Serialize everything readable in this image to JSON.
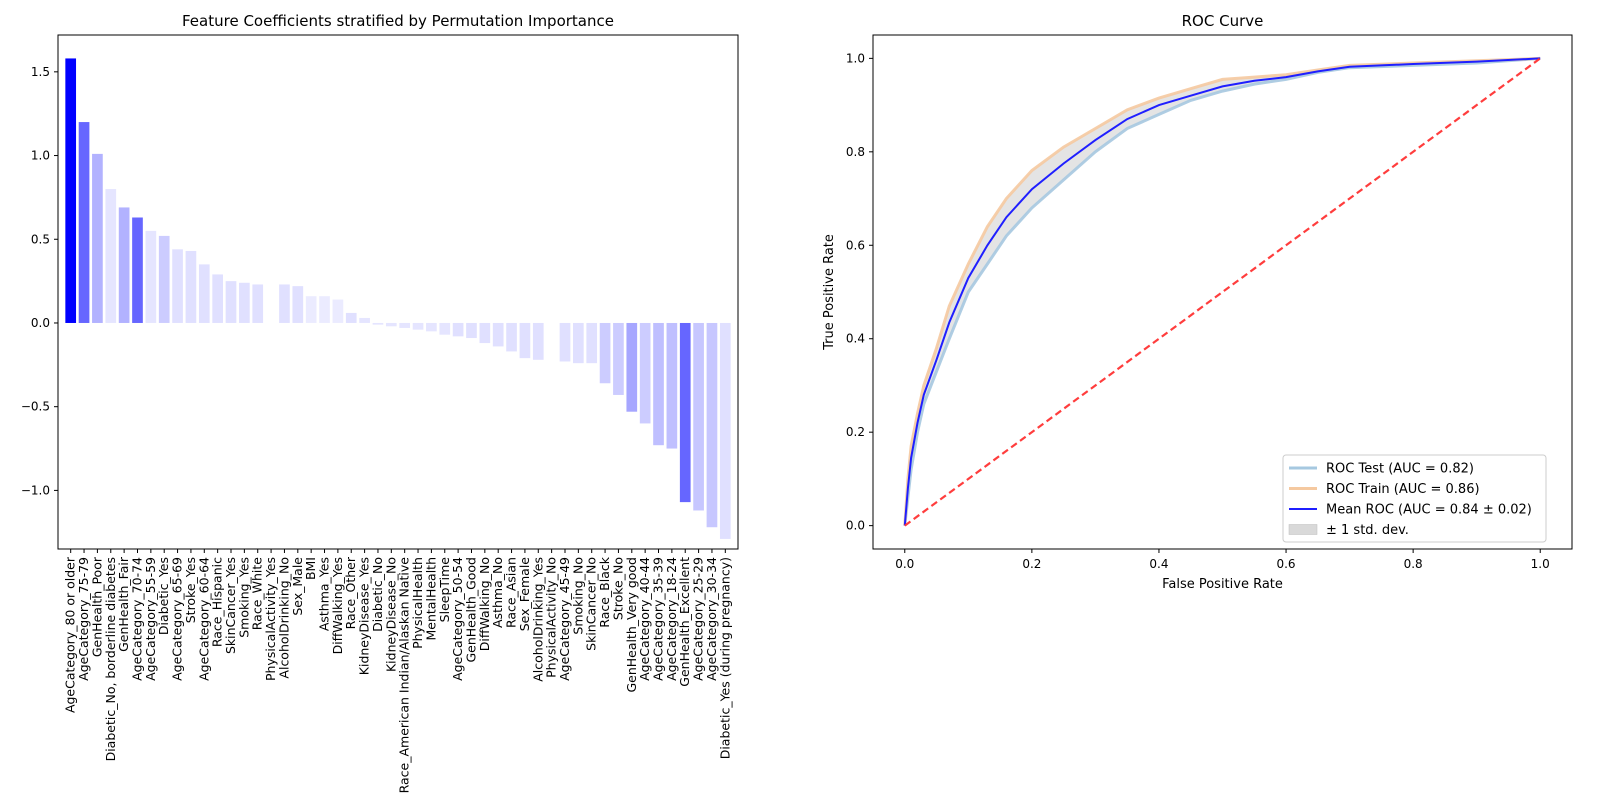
{
  "chart_data": [
    {
      "type": "bar",
      "title": "Feature Coefficients stratified by Permutation Importance",
      "xlabel": "",
      "ylabel": "",
      "ylim": [
        -1.35,
        1.72
      ],
      "yticks": [
        -1.0,
        -0.5,
        0.0,
        0.5,
        1.0,
        1.5
      ],
      "ytick_labels": [
        "−1.0",
        "−0.5",
        "0.0",
        "0.5",
        "1.0",
        "1.5"
      ],
      "bar_color": "#0000ff",
      "categories": [
        "AgeCategory_80 or older",
        "AgeCategory_75-79",
        "GenHealth_Poor",
        "Diabetic_No, borderline diabetes",
        "GenHealth_Fair",
        "AgeCategory_70-74",
        "AgeCategory_55-59",
        "Diabetic_Yes",
        "AgeCategory_65-69",
        "Stroke_Yes",
        "AgeCategory_60-64",
        "Race_Hispanic",
        "SkinCancer_Yes",
        "Smoking_Yes",
        "Race_White",
        "PhysicalActivity_Yes",
        "AlcoholDrinking_No",
        "Sex_Male",
        "BMI",
        "Asthma_Yes",
        "DiffWalking_Yes",
        "Race_Other",
        "KidneyDisease_Yes",
        "Diabetic_No",
        "KidneyDisease_No",
        "Race_American Indian/Alaskan Native",
        "PhysicalHealth",
        "MentalHealth",
        "SleepTime",
        "AgeCategory_50-54",
        "GenHealth_Good",
        "DiffWalking_No",
        "Asthma_No",
        "Race_Asian",
        "Sex_Female",
        "AlcoholDrinking_Yes",
        "PhysicalActivity_No",
        "AgeCategory_45-49",
        "Smoking_No",
        "SkinCancer_No",
        "Race_Black",
        "Stroke_No",
        "GenHealth_Very good",
        "AgeCategory_40-44",
        "AgeCategory_35-39",
        "AgeCategory_18-24",
        "GenHealth_Excellent",
        "AgeCategory_25-29",
        "AgeCategory_30-34",
        "Diabetic_Yes (during pregnancy)"
      ],
      "values": [
        1.58,
        1.2,
        1.01,
        0.8,
        0.69,
        0.63,
        0.55,
        0.52,
        0.44,
        0.43,
        0.35,
        0.29,
        0.25,
        0.24,
        0.23,
        0.0,
        0.23,
        0.22,
        0.16,
        0.16,
        0.14,
        0.06,
        0.03,
        -0.01,
        -0.02,
        -0.03,
        -0.04,
        -0.05,
        -0.07,
        -0.08,
        -0.09,
        -0.12,
        -0.14,
        -0.17,
        -0.21,
        -0.22,
        0.0,
        -0.23,
        -0.24,
        -0.24,
        -0.36,
        -0.43,
        -0.53,
        -0.6,
        -0.73,
        -0.75,
        -1.07,
        -1.12,
        -1.22,
        -1.29
      ],
      "importance_alpha": [
        1.0,
        0.6,
        0.3,
        0.1,
        0.3,
        0.6,
        0.1,
        0.2,
        0.12,
        0.12,
        0.12,
        0.12,
        0.12,
        0.12,
        0.12,
        0.0,
        0.12,
        0.12,
        0.08,
        0.08,
        0.08,
        0.12,
        0.1,
        0.1,
        0.1,
        0.1,
        0.1,
        0.1,
        0.1,
        0.12,
        0.12,
        0.12,
        0.12,
        0.12,
        0.12,
        0.12,
        0.0,
        0.12,
        0.12,
        0.12,
        0.2,
        0.2,
        0.35,
        0.2,
        0.25,
        0.25,
        0.6,
        0.22,
        0.22,
        0.12
      ]
    },
    {
      "type": "line",
      "title": "ROC Curve",
      "xlabel": "False Positive Rate",
      "ylabel": "True Positive Rate",
      "xlim": [
        -0.05,
        1.05
      ],
      "ylim": [
        -0.05,
        1.05
      ],
      "xticks": [
        0.0,
        0.2,
        0.4,
        0.6,
        0.8,
        1.0
      ],
      "yticks": [
        0.0,
        0.2,
        0.4,
        0.6,
        0.8,
        1.0
      ],
      "xtick_labels": [
        "0.0",
        "0.2",
        "0.4",
        "0.6",
        "0.8",
        "1.0"
      ],
      "ytick_labels": [
        "0.0",
        "0.2",
        "0.4",
        "0.6",
        "0.8",
        "1.0"
      ],
      "legend_position": "bottom-right",
      "series": [
        {
          "name": "ROC Test (AUC = 0.82)",
          "color": "#a6c8e0",
          "x": [
            0,
            0.005,
            0.01,
            0.02,
            0.03,
            0.05,
            0.07,
            0.1,
            0.13,
            0.16,
            0.2,
            0.25,
            0.3,
            0.35,
            0.4,
            0.45,
            0.5,
            0.55,
            0.6,
            0.65,
            0.7,
            0.8,
            0.9,
            1.0
          ],
          "y": [
            0,
            0.06,
            0.12,
            0.2,
            0.26,
            0.33,
            0.4,
            0.5,
            0.56,
            0.62,
            0.68,
            0.74,
            0.8,
            0.85,
            0.88,
            0.91,
            0.93,
            0.945,
            0.955,
            0.97,
            0.98,
            0.985,
            0.99,
            1.0
          ]
        },
        {
          "name": "ROC Train (AUC = 0.86)",
          "color": "#f5c9a0",
          "x": [
            0,
            0.005,
            0.01,
            0.02,
            0.03,
            0.05,
            0.07,
            0.1,
            0.13,
            0.16,
            0.2,
            0.25,
            0.3,
            0.35,
            0.4,
            0.45,
            0.5,
            0.55,
            0.6,
            0.65,
            0.7,
            0.8,
            0.9,
            1.0
          ],
          "y": [
            0,
            0.1,
            0.17,
            0.24,
            0.3,
            0.38,
            0.47,
            0.56,
            0.64,
            0.7,
            0.76,
            0.81,
            0.85,
            0.89,
            0.915,
            0.935,
            0.955,
            0.96,
            0.965,
            0.975,
            0.985,
            0.99,
            0.995,
            1.0
          ]
        },
        {
          "name": "Mean ROC (AUC = 0.84 ± 0.02)",
          "color": "#1f1fff",
          "x": [
            0,
            0.005,
            0.01,
            0.02,
            0.03,
            0.05,
            0.07,
            0.1,
            0.13,
            0.16,
            0.2,
            0.25,
            0.3,
            0.35,
            0.4,
            0.45,
            0.5,
            0.55,
            0.6,
            0.65,
            0.7,
            0.8,
            0.9,
            1.0
          ],
          "y": [
            0,
            0.08,
            0.145,
            0.22,
            0.28,
            0.355,
            0.435,
            0.53,
            0.6,
            0.66,
            0.72,
            0.775,
            0.825,
            0.87,
            0.9,
            0.92,
            0.94,
            0.952,
            0.96,
            0.972,
            0.982,
            0.988,
            0.993,
            1.0
          ]
        },
        {
          "name": "chance",
          "color": "#ff3333",
          "x": [
            0,
            1
          ],
          "y": [
            0,
            1
          ]
        }
      ],
      "band": {
        "name": "± 1 std. dev.",
        "color": "#d9d9d9",
        "x": [
          0,
          0.005,
          0.01,
          0.02,
          0.03,
          0.05,
          0.07,
          0.1,
          0.13,
          0.16,
          0.2,
          0.25,
          0.3,
          0.35,
          0.4,
          0.45,
          0.5,
          0.55,
          0.6,
          0.65,
          0.7,
          0.8,
          0.9,
          1.0
        ],
        "lower": [
          0,
          0.06,
          0.12,
          0.2,
          0.26,
          0.33,
          0.4,
          0.5,
          0.56,
          0.62,
          0.68,
          0.74,
          0.8,
          0.85,
          0.88,
          0.91,
          0.93,
          0.945,
          0.955,
          0.97,
          0.98,
          0.985,
          0.99,
          1.0
        ],
        "upper": [
          0,
          0.1,
          0.17,
          0.24,
          0.3,
          0.38,
          0.47,
          0.56,
          0.64,
          0.7,
          0.76,
          0.81,
          0.85,
          0.89,
          0.915,
          0.935,
          0.955,
          0.96,
          0.965,
          0.975,
          0.985,
          0.99,
          0.995,
          1.0
        ]
      }
    }
  ]
}
